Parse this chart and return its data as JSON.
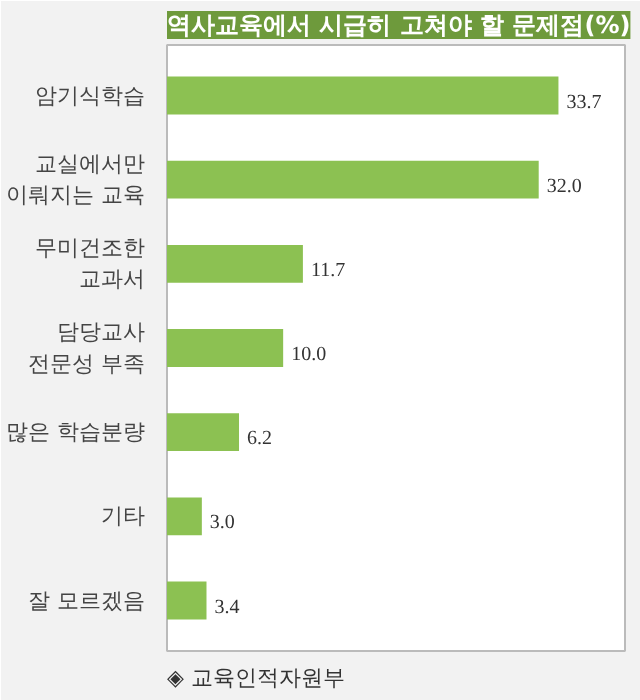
{
  "chart_data": {
    "type": "bar",
    "orientation": "horizontal",
    "title": "역사교육에서 시급히 고쳐야 할 문제점(%)",
    "categories": [
      "암기식학습",
      "교실에서만\n이뤄지는 교육",
      "무미건조한\n교과서",
      "담당교사\n전문성 부족",
      "많은 학습분량",
      "기타",
      "잘 모르겠음"
    ],
    "values": [
      33.7,
      32.0,
      11.7,
      10.0,
      6.2,
      3.0,
      3.4
    ],
    "color": "#8cc152",
    "data_labels": true,
    "value_labels": [
      "33.7",
      "32.0",
      "11.7",
      "10.0",
      "6.2",
      "3.0",
      "3.4"
    ],
    "grid": false,
    "annotations": [
      "◈ 교육인적자원부"
    ]
  }
}
